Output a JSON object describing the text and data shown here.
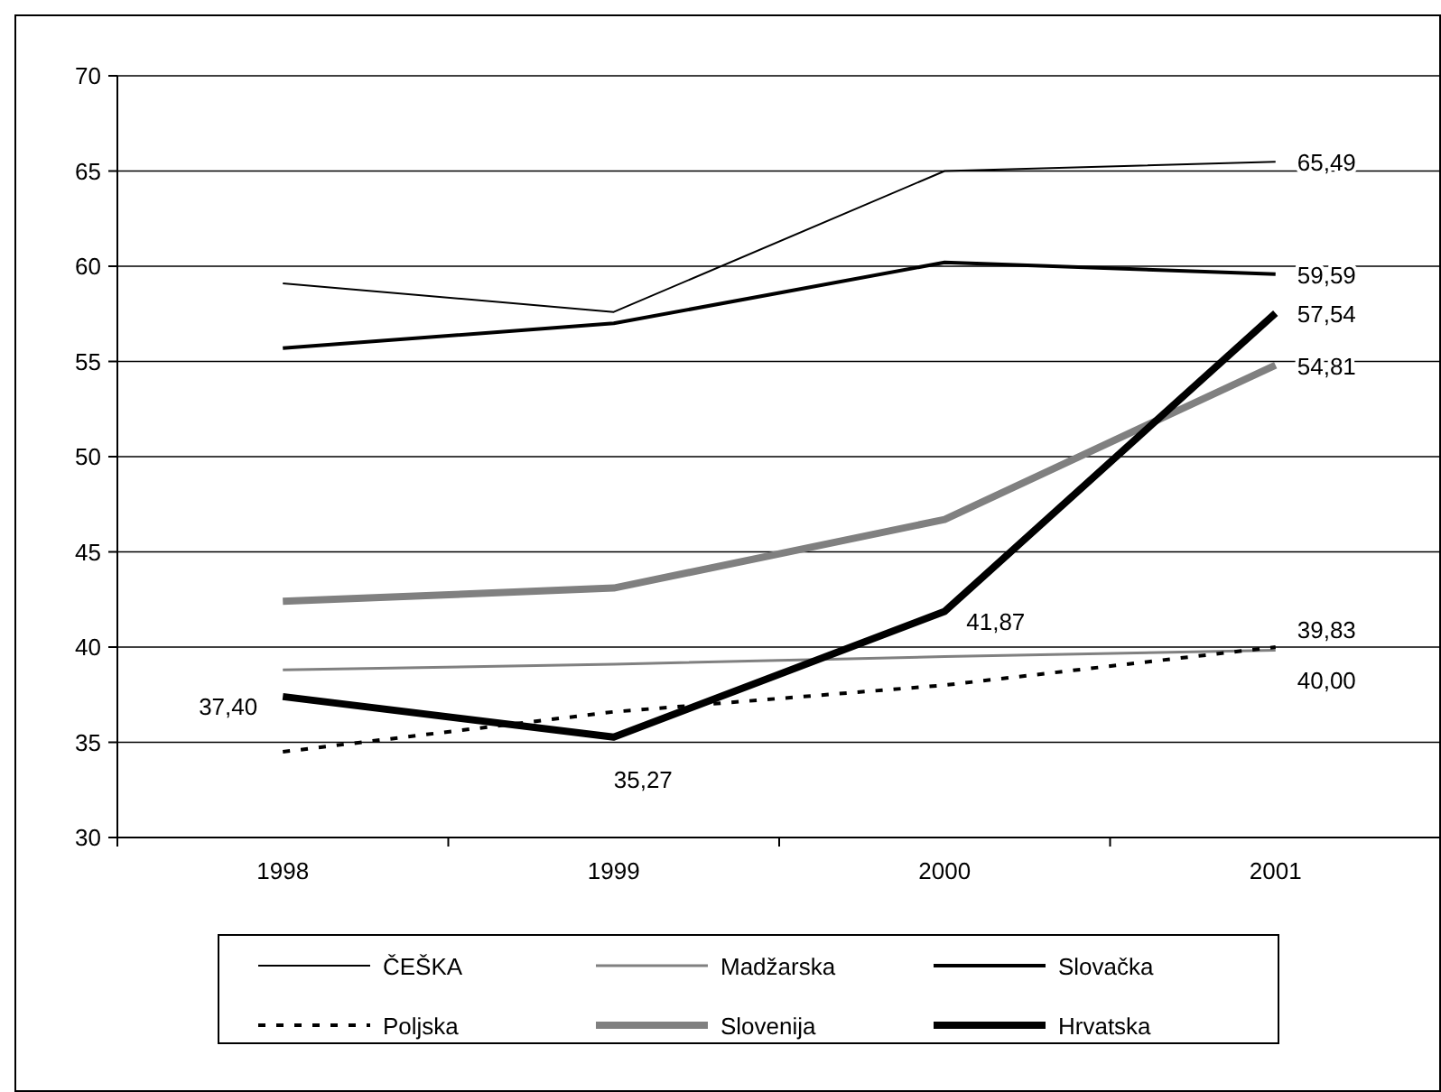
{
  "chart_data": {
    "type": "line",
    "categories": [
      "1998",
      "1999",
      "2000",
      "2001"
    ],
    "ylim": [
      30,
      70
    ],
    "yticks": [
      30,
      35,
      40,
      45,
      50,
      55,
      60,
      65,
      70
    ],
    "grid": "y",
    "legend": "bottom",
    "marker": "none",
    "series": [
      {
        "name": "ČEŠKA",
        "color": "#000000",
        "values": [
          59.1,
          57.6,
          65.0,
          65.49
        ],
        "value_labels": [
          null,
          null,
          null,
          "65,49"
        ]
      },
      {
        "name": "Madžarska",
        "color": "#808080",
        "values": [
          38.8,
          39.1,
          39.5,
          39.83
        ],
        "value_labels": [
          null,
          null,
          null,
          "39,83"
        ]
      },
      {
        "name": "Slovačka",
        "color": "#000000",
        "values": [
          55.7,
          57.0,
          60.2,
          59.59
        ],
        "value_labels": [
          null,
          null,
          null,
          "59,59"
        ]
      },
      {
        "name": "Poljska",
        "color": "#000000",
        "line_style": "dashed",
        "values": [
          34.5,
          36.6,
          38.0,
          40.0
        ],
        "value_labels": [
          null,
          null,
          null,
          "40,00"
        ]
      },
      {
        "name": "Slovenija",
        "color": "#808080",
        "values": [
          42.4,
          43.1,
          46.7,
          54.81
        ],
        "value_labels": [
          null,
          null,
          null,
          "54,81"
        ]
      },
      {
        "name": "Hrvatska",
        "color": "#000000",
        "values": [
          37.4,
          35.27,
          41.87,
          57.54
        ],
        "value_labels": [
          "37,40",
          "35,27",
          "41,87",
          "57,54"
        ]
      }
    ]
  }
}
